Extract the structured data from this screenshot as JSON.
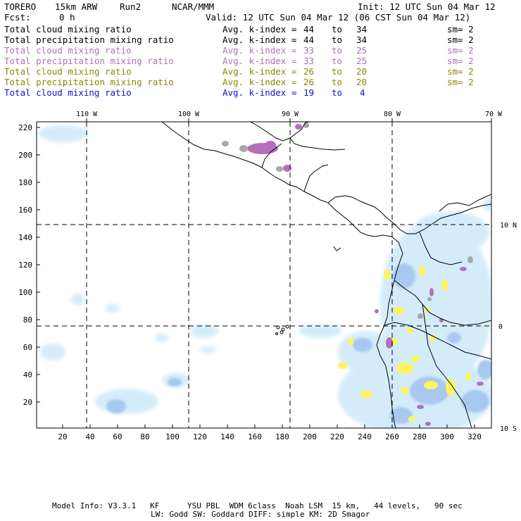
{
  "header": {
    "model": "TORERO",
    "resolution": "15km ARW",
    "run": "Run2",
    "org": "NCAR/MMM",
    "init": "Init: 12 UTC Sun 04 Mar 12",
    "fcst_label": "Fcst:",
    "fcst_value": "0 h",
    "valid": "Valid: 12 UTC Sun 04 Mar 12 (06 CST Sun 04 Mar 12)"
  },
  "legend": [
    {
      "field": "Total cloud mixing ratio",
      "index": "Avg. k-index =",
      "from": "44",
      "to_label": "to",
      "to": "34",
      "sm": "sm= 2",
      "color": "#000000"
    },
    {
      "field": "Total precipitation mixing ratio",
      "index": "Avg. k-index =",
      "from": "44",
      "to_label": "to",
      "to": "34",
      "sm": "sm= 2",
      "color": "#000000"
    },
    {
      "field": "Total cloud mixing ratio",
      "index": "Avg. k-index =",
      "from": "33",
      "to_label": "to",
      "to": "25",
      "sm": "sm= 2",
      "color": "#b070b8"
    },
    {
      "field": "Total precipitation mixing ratio",
      "index": "Avg. k-index =",
      "from": "33",
      "to_label": "to",
      "to": "25",
      "sm": "sm= 2",
      "color": "#b070b8"
    },
    {
      "field": "Total cloud mixing ratio",
      "index": "Avg. k-index =",
      "from": "26",
      "to_label": "to",
      "to": "20",
      "sm": "sm= 2",
      "color": "#888800"
    },
    {
      "field": "Total precipitation mixing ratio",
      "index": "Avg. k-index =",
      "from": "26",
      "to_label": "to",
      "to": "20",
      "sm": "sm= 2",
      "color": "#888800"
    },
    {
      "field": "Total cloud mixing ratio",
      "index": "Avg. k-index =",
      "from": "19",
      "to_label": "to",
      "to": "4",
      "sm": "",
      "color": "#1010d0"
    }
  ],
  "map": {
    "lon_labels": [
      "110 W",
      "100 W",
      "90 W",
      "80 W",
      "70 W"
    ],
    "lat_labels": [
      "10 N",
      "0",
      "10 S"
    ],
    "y_ticks": [
      "220",
      "200",
      "180",
      "160",
      "140",
      "120",
      "100",
      "80",
      "60",
      "40",
      "20"
    ],
    "x_ticks": [
      "20",
      "40",
      "60",
      "80",
      "100",
      "120",
      "140",
      "160",
      "180",
      "200",
      "220",
      "240",
      "260",
      "280",
      "300",
      "320"
    ]
  },
  "footer": {
    "line1": "Model Info: V3.3.1   KF      YSU PBL  WDM 6class  Noah LSM  15 km,   44 levels,   90 sec",
    "line2": "LW: Godd SW: Goddard DIFF: simple KM: 2D Smagor"
  }
}
